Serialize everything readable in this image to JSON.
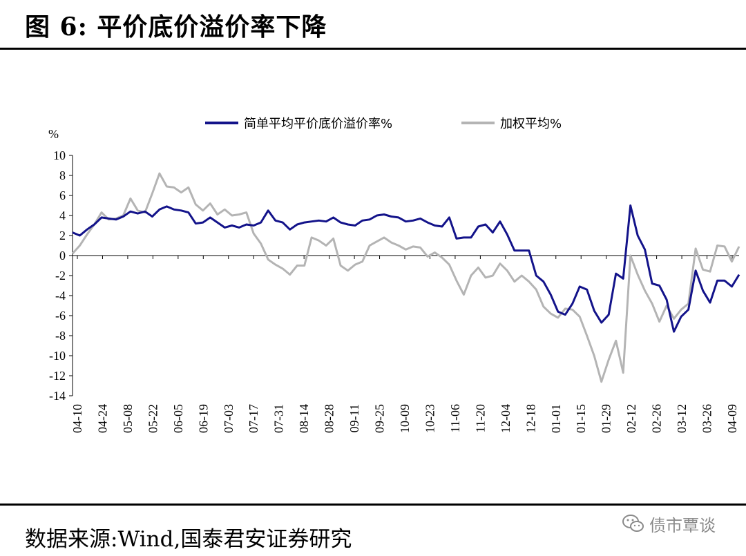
{
  "figure": {
    "title": "图 6:  平价底价溢价率下降",
    "source": "数据来源:Wind,国泰君安证券研究"
  },
  "watermark": {
    "text": "债市覃谈",
    "icon": "wechat-icon"
  },
  "colors": {
    "series_simple": "#13138a",
    "series_weighted": "#b4b4b4"
  },
  "chart_data": {
    "type": "line",
    "title": "",
    "xlabel": "",
    "ylabel": "%",
    "ylim": [
      -14,
      10
    ],
    "yticks": [
      10,
      8,
      6,
      4,
      2,
      0,
      -2,
      -4,
      -6,
      -8,
      -10,
      -12,
      -14
    ],
    "grid": false,
    "legend_position": "top",
    "x_tick_labels": [
      "04-10",
      "04-24",
      "05-08",
      "05-22",
      "06-05",
      "06-19",
      "07-03",
      "07-17",
      "07-31",
      "08-14",
      "08-28",
      "09-11",
      "09-25",
      "10-09",
      "10-23",
      "11-06",
      "11-20",
      "12-04",
      "12-18",
      "01-01",
      "01-15",
      "01-29",
      "02-12",
      "02-26",
      "03-12",
      "03-26",
      "04-09"
    ],
    "series": [
      {
        "name": "简单平均平价底价溢价率%",
        "values": [
          [
            0,
            2.3
          ],
          [
            1,
            2.0
          ],
          [
            2,
            2.6
          ],
          [
            3,
            3.1
          ],
          [
            4,
            3.8
          ],
          [
            5,
            3.7
          ],
          [
            6,
            3.6
          ],
          [
            7,
            3.9
          ],
          [
            8,
            4.4
          ],
          [
            9,
            4.2
          ],
          [
            10,
            4.4
          ],
          [
            11,
            3.9
          ],
          [
            12,
            4.6
          ],
          [
            13,
            4.9
          ],
          [
            14,
            4.6
          ],
          [
            15,
            4.5
          ],
          [
            16,
            4.3
          ],
          [
            17,
            3.2
          ],
          [
            18,
            3.3
          ],
          [
            19,
            3.8
          ],
          [
            20,
            3.3
          ],
          [
            21,
            2.8
          ],
          [
            22,
            3.0
          ],
          [
            23,
            2.8
          ],
          [
            24,
            3.1
          ],
          [
            25,
            3.0
          ],
          [
            26,
            3.3
          ],
          [
            27,
            4.5
          ],
          [
            28,
            3.5
          ],
          [
            29,
            3.3
          ],
          [
            30,
            2.6
          ],
          [
            31,
            3.1
          ],
          [
            32,
            3.3
          ],
          [
            33,
            3.4
          ],
          [
            34,
            3.5
          ],
          [
            35,
            3.4
          ],
          [
            36,
            3.8
          ],
          [
            37,
            3.3
          ],
          [
            38,
            3.1
          ],
          [
            39,
            3.0
          ],
          [
            40,
            3.5
          ],
          [
            41,
            3.6
          ],
          [
            42,
            4.0
          ],
          [
            43,
            4.1
          ],
          [
            44,
            3.9
          ],
          [
            45,
            3.8
          ],
          [
            46,
            3.4
          ],
          [
            47,
            3.5
          ],
          [
            48,
            3.7
          ],
          [
            49,
            3.3
          ],
          [
            50,
            3.0
          ],
          [
            51,
            2.9
          ],
          [
            52,
            3.8
          ],
          [
            53,
            1.7
          ],
          [
            54,
            1.8
          ],
          [
            55,
            1.8
          ],
          [
            56,
            2.9
          ],
          [
            57,
            3.1
          ],
          [
            58,
            2.3
          ],
          [
            59,
            3.4
          ],
          [
            60,
            2.1
          ],
          [
            61,
            0.5
          ],
          [
            62,
            0.5
          ],
          [
            63,
            0.5
          ],
          [
            64,
            -2.0
          ],
          [
            65,
            -2.6
          ],
          [
            66,
            -3.9
          ],
          [
            67,
            -5.6
          ],
          [
            68,
            -5.9
          ],
          [
            69,
            -4.8
          ],
          [
            70,
            -3.1
          ],
          [
            71,
            -3.4
          ],
          [
            72,
            -5.5
          ],
          [
            73,
            -6.7
          ],
          [
            74,
            -5.9
          ],
          [
            75,
            -1.8
          ],
          [
            76,
            -2.3
          ],
          [
            77,
            5.0
          ],
          [
            78,
            2.0
          ],
          [
            79,
            0.6
          ],
          [
            80,
            -2.8
          ],
          [
            81,
            -3.0
          ],
          [
            82,
            -4.4
          ],
          [
            83,
            -7.6
          ],
          [
            84,
            -6.1
          ],
          [
            85,
            -5.4
          ],
          [
            86,
            -1.5
          ],
          [
            87,
            -3.5
          ],
          [
            88,
            -4.7
          ],
          [
            89,
            -2.5
          ],
          [
            90,
            -2.5
          ],
          [
            91,
            -3.1
          ],
          [
            92,
            -1.9
          ]
        ]
      },
      {
        "name": "加权平均%",
        "values": [
          [
            0,
            0.2
          ],
          [
            1,
            1.0
          ],
          [
            2,
            2.1
          ],
          [
            3,
            3.1
          ],
          [
            4,
            4.3
          ],
          [
            5,
            3.6
          ],
          [
            6,
            3.7
          ],
          [
            7,
            4.0
          ],
          [
            8,
            5.7
          ],
          [
            9,
            4.5
          ],
          [
            10,
            4.3
          ],
          [
            11,
            6.2
          ],
          [
            12,
            8.2
          ],
          [
            13,
            6.9
          ],
          [
            14,
            6.8
          ],
          [
            15,
            6.3
          ],
          [
            16,
            6.8
          ],
          [
            17,
            5.1
          ],
          [
            18,
            4.5
          ],
          [
            19,
            5.2
          ],
          [
            20,
            4.1
          ],
          [
            21,
            4.6
          ],
          [
            22,
            4.0
          ],
          [
            23,
            4.1
          ],
          [
            24,
            4.3
          ],
          [
            25,
            2.2
          ],
          [
            26,
            1.2
          ],
          [
            27,
            -0.4
          ],
          [
            28,
            -0.9
          ],
          [
            29,
            -1.3
          ],
          [
            30,
            -1.9
          ],
          [
            31,
            -1.0
          ],
          [
            32,
            -1.0
          ],
          [
            33,
            1.8
          ],
          [
            34,
            1.5
          ],
          [
            35,
            1.0
          ],
          [
            36,
            1.7
          ],
          [
            37,
            -1.0
          ],
          [
            38,
            -1.5
          ],
          [
            39,
            -0.9
          ],
          [
            40,
            -0.6
          ],
          [
            41,
            1.0
          ],
          [
            42,
            1.4
          ],
          [
            43,
            1.8
          ],
          [
            44,
            1.3
          ],
          [
            45,
            1.0
          ],
          [
            46,
            0.6
          ],
          [
            47,
            0.9
          ],
          [
            48,
            0.8
          ],
          [
            49,
            -0.1
          ],
          [
            50,
            0.3
          ],
          [
            51,
            -0.2
          ],
          [
            52,
            -0.9
          ],
          [
            53,
            -2.5
          ],
          [
            54,
            -3.9
          ],
          [
            55,
            -2.0
          ],
          [
            56,
            -1.2
          ],
          [
            57,
            -2.2
          ],
          [
            58,
            -2.0
          ],
          [
            59,
            -0.8
          ],
          [
            60,
            -1.5
          ],
          [
            61,
            -2.6
          ],
          [
            62,
            -2.0
          ],
          [
            63,
            -2.6
          ],
          [
            64,
            -3.4
          ],
          [
            65,
            -5.1
          ],
          [
            66,
            -5.8
          ],
          [
            67,
            -6.2
          ],
          [
            68,
            -5.3
          ],
          [
            69,
            -5.4
          ],
          [
            70,
            -6.1
          ],
          [
            71,
            -8.0
          ],
          [
            72,
            -10.0
          ],
          [
            73,
            -12.6
          ],
          [
            74,
            -10.4
          ],
          [
            75,
            -8.5
          ],
          [
            76,
            -11.7
          ],
          [
            77,
            0.0
          ],
          [
            78,
            -1.9
          ],
          [
            79,
            -3.5
          ],
          [
            80,
            -4.8
          ],
          [
            81,
            -6.6
          ],
          [
            82,
            -5.0
          ],
          [
            83,
            -6.3
          ],
          [
            84,
            -5.4
          ],
          [
            85,
            -4.8
          ],
          [
            86,
            0.7
          ],
          [
            87,
            -1.4
          ],
          [
            88,
            -1.6
          ],
          [
            89,
            1.0
          ],
          [
            90,
            0.9
          ],
          [
            91,
            -0.6
          ],
          [
            92,
            0.9
          ]
        ]
      }
    ]
  }
}
